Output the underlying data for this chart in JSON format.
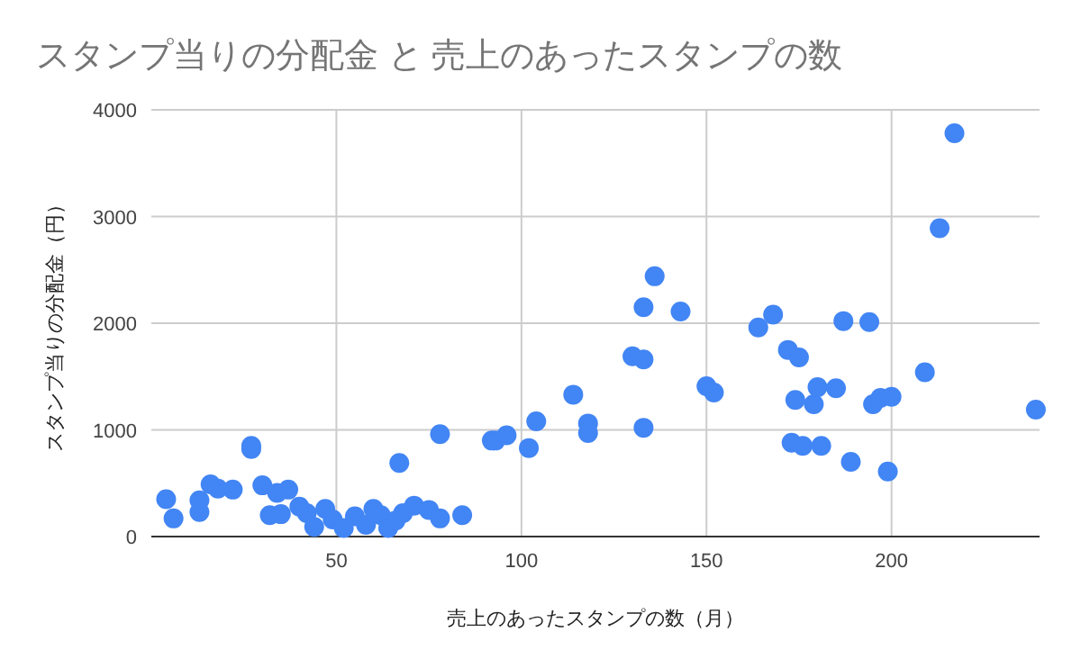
{
  "chart_data": {
    "type": "scatter",
    "title": "スタンプ当りの分配金 と 売上のあったスタンプの数",
    "xlabel": "売上のあったスタンプの数（月）",
    "ylabel": "スタンプ当りの分配金（円）",
    "xlim": [
      0,
      240
    ],
    "xticks": [
      50,
      100,
      150,
      200
    ],
    "ylim": [
      0,
      4000
    ],
    "yticks": [
      0,
      1000,
      2000,
      3000,
      4000
    ],
    "grid": true,
    "marker": "circle",
    "series": [
      {
        "color": "#4285f4",
        "x": [
          4,
          6,
          13,
          13,
          16,
          18,
          22,
          27,
          27,
          30,
          32,
          34,
          35,
          37,
          40,
          42,
          47,
          67,
          78,
          92,
          71,
          75,
          78,
          84,
          44,
          49,
          52,
          55,
          58,
          60,
          62,
          64,
          66,
          68,
          93,
          96,
          102,
          104,
          114,
          118,
          118,
          130,
          133,
          133,
          136,
          143,
          133,
          150,
          152,
          164,
          168,
          172,
          175,
          174,
          179,
          180,
          185,
          173,
          176,
          181,
          187,
          194,
          189,
          199,
          195,
          197,
          200,
          209,
          213,
          217,
          239
        ],
        "values": [
          350,
          170,
          340,
          230,
          490,
          450,
          440,
          850,
          820,
          480,
          200,
          410,
          210,
          440,
          280,
          220,
          260,
          690,
          960,
          900,
          290,
          250,
          170,
          200,
          90,
          160,
          80,
          190,
          110,
          260,
          200,
          80,
          150,
          220,
          900,
          950,
          830,
          1080,
          1330,
          1060,
          970,
          1690,
          1660,
          2150,
          2440,
          2110,
          1020,
          1410,
          1350,
          1960,
          2080,
          1750,
          1680,
          1280,
          1240,
          1400,
          1390,
          880,
          850,
          850,
          2020,
          2010,
          700,
          610,
          1240,
          1300,
          1310,
          1540,
          2890,
          3780,
          1190
        ]
      }
    ]
  }
}
